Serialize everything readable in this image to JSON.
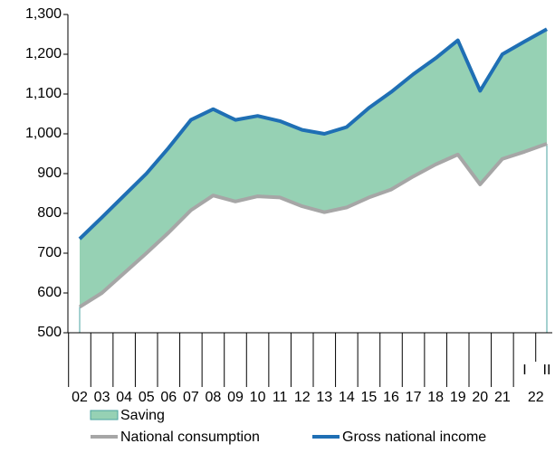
{
  "chart_data": {
    "type": "area-line",
    "categories": [
      "02",
      "03",
      "04",
      "05",
      "06",
      "07",
      "08",
      "09",
      "10",
      "11",
      "12",
      "13",
      "14",
      "15",
      "16",
      "17",
      "18",
      "19",
      "20",
      "21",
      "I",
      "II"
    ],
    "group_label": "22",
    "series": [
      {
        "name": "Saving",
        "color": "#96d1b4",
        "role": "stacked-area",
        "values": [
          171,
          190,
          195,
          200,
          213,
          227,
          217,
          205,
          202,
          192,
          192,
          197,
          202,
          225,
          245,
          257,
          267,
          287,
          235,
          263,
          277,
          288
        ]
      },
      {
        "name": "National consumption",
        "color": "#a6a6a6",
        "role": "line",
        "values": [
          565,
          600,
          650,
          700,
          752,
          808,
          845,
          830,
          843,
          840,
          818,
          803,
          815,
          840,
          860,
          893,
          923,
          948,
          873,
          937,
          955,
          975
        ]
      },
      {
        "name": "Gross national income",
        "color": "#1f6fb4",
        "role": "line",
        "values": [
          736,
          790,
          845,
          900,
          965,
          1035,
          1062,
          1035,
          1045,
          1032,
          1010,
          1000,
          1017,
          1065,
          1105,
          1150,
          1190,
          1235,
          1108,
          1200,
          1232,
          1263
        ]
      }
    ],
    "ylim": [
      500,
      1300
    ],
    "yticks": [
      500,
      600,
      700,
      800,
      900,
      {
        "value": 1000,
        "label": "1,000"
      },
      {
        "value": 1100,
        "label": "1,100"
      },
      {
        "value": 1200,
        "label": "1,200"
      },
      {
        "value": 1300,
        "label": "1,300"
      }
    ]
  }
}
